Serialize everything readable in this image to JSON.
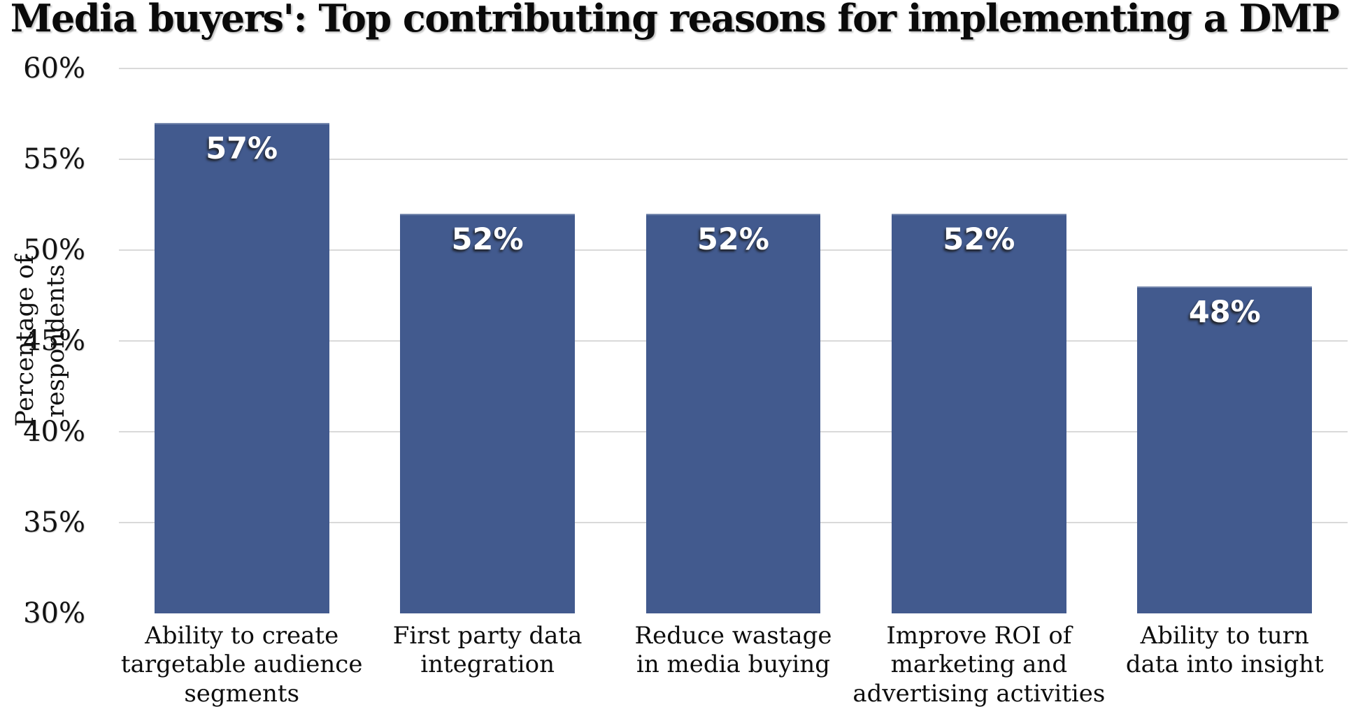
{
  "chart_data": {
    "type": "bar",
    "title": "Media buyers': Top contributing reasons for implementing a DMP",
    "xlabel": "",
    "ylabel": "Percentage of respondents",
    "categories": [
      "Ability to create targetable audience segments",
      "First party data integration",
      "Reduce wastage in media buying",
      "Improve ROI of marketing and advertising activities",
      "Ability to turn data into insight"
    ],
    "category_lines": [
      [
        "Ability to create",
        "targetable audience",
        "segments"
      ],
      [
        "First party data",
        "integration"
      ],
      [
        "Reduce wastage",
        "in media buying"
      ],
      [
        "Improve ROI of",
        "marketing and",
        "advertising activities"
      ],
      [
        "Ability to turn",
        "data into insight"
      ]
    ],
    "values": [
      57,
      52,
      52,
      52,
      48
    ],
    "data_labels": [
      "57%",
      "52%",
      "52%",
      "52%",
      "48%"
    ],
    "ylim": [
      30,
      60
    ],
    "yticks": [
      30,
      35,
      40,
      45,
      50,
      55,
      60
    ],
    "ytick_labels": [
      "30%",
      "35%",
      "40%",
      "45%",
      "50%",
      "55%",
      "60%"
    ],
    "grid": true,
    "gridlines_at": [
      35,
      40,
      45,
      50,
      55,
      60
    ],
    "legend": "none",
    "colors": {
      "bar_fill": "#425A8E",
      "gridline": "#d9d9d9",
      "title_text": "#0a0a0a",
      "axis_text": "#121212",
      "data_label_text": "#ffffff",
      "background": "#ffffff"
    }
  }
}
